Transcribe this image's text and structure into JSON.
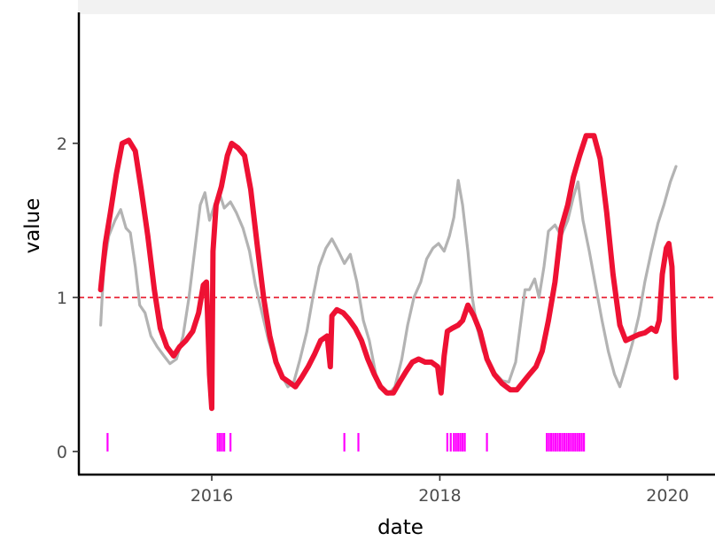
{
  "chart_data": {
    "type": "line",
    "title": "",
    "xlabel": "date",
    "ylabel": "value",
    "xlim": [
      "2014-11-01",
      "2020-06-01"
    ],
    "ylim": [
      -0.15,
      2.85
    ],
    "x_ticks": [
      {
        "date": "2016-01-01",
        "label": "2016"
      },
      {
        "date": "2018-01-01",
        "label": "2018"
      },
      {
        "date": "2020-01-01",
        "label": "2020"
      }
    ],
    "y_ticks": [
      {
        "value": 0,
        "label": "0"
      },
      {
        "value": 1,
        "label": "1"
      },
      {
        "value": 2,
        "label": "2"
      }
    ],
    "reference_line": {
      "value": 1,
      "style": "dashed",
      "color": "#e8192c"
    },
    "grid": false,
    "series": [
      {
        "color": "#ee1133",
        "style": "thick",
        "points": [
          [
            "2015-01-10",
            1.05
          ],
          [
            "2015-01-25",
            1.35
          ],
          [
            "2015-02-10",
            1.55
          ],
          [
            "2015-03-01",
            1.8
          ],
          [
            "2015-03-20",
            2.0
          ],
          [
            "2015-04-10",
            2.02
          ],
          [
            "2015-05-01",
            1.95
          ],
          [
            "2015-05-20",
            1.7
          ],
          [
            "2015-06-10",
            1.4
          ],
          [
            "2015-07-01",
            1.05
          ],
          [
            "2015-07-20",
            0.8
          ],
          [
            "2015-08-10",
            0.68
          ],
          [
            "2015-09-01",
            0.62
          ],
          [
            "2015-09-20",
            0.68
          ],
          [
            "2015-10-10",
            0.72
          ],
          [
            "2015-11-01",
            0.78
          ],
          [
            "2015-11-20",
            0.9
          ],
          [
            "2015-12-05",
            1.08
          ],
          [
            "2015-12-15",
            1.1
          ],
          [
            "2015-12-25",
            0.5
          ],
          [
            "2016-01-01",
            0.28
          ],
          [
            "2016-01-05",
            1.3
          ],
          [
            "2016-01-15",
            1.6
          ],
          [
            "2016-02-01",
            1.72
          ],
          [
            "2016-02-20",
            1.92
          ],
          [
            "2016-03-05",
            2.0
          ],
          [
            "2016-03-25",
            1.97
          ],
          [
            "2016-04-15",
            1.92
          ],
          [
            "2016-05-05",
            1.7
          ],
          [
            "2016-05-25",
            1.35
          ],
          [
            "2016-06-15",
            1.0
          ],
          [
            "2016-07-05",
            0.75
          ],
          [
            "2016-07-25",
            0.58
          ],
          [
            "2016-08-15",
            0.48
          ],
          [
            "2016-09-05",
            0.45
          ],
          [
            "2016-09-25",
            0.42
          ],
          [
            "2016-10-15",
            0.48
          ],
          [
            "2016-11-05",
            0.55
          ],
          [
            "2016-11-25",
            0.63
          ],
          [
            "2016-12-15",
            0.72
          ],
          [
            "2017-01-05",
            0.75
          ],
          [
            "2017-01-15",
            0.55
          ],
          [
            "2017-01-20",
            0.88
          ],
          [
            "2017-02-05",
            0.92
          ],
          [
            "2017-02-25",
            0.9
          ],
          [
            "2017-03-15",
            0.86
          ],
          [
            "2017-04-05",
            0.8
          ],
          [
            "2017-04-25",
            0.72
          ],
          [
            "2017-05-15",
            0.6
          ],
          [
            "2017-06-05",
            0.5
          ],
          [
            "2017-06-25",
            0.42
          ],
          [
            "2017-07-15",
            0.38
          ],
          [
            "2017-08-05",
            0.38
          ],
          [
            "2017-08-25",
            0.45
          ],
          [
            "2017-09-15",
            0.52
          ],
          [
            "2017-10-05",
            0.58
          ],
          [
            "2017-10-25",
            0.6
          ],
          [
            "2017-11-15",
            0.58
          ],
          [
            "2017-12-05",
            0.58
          ],
          [
            "2017-12-25",
            0.55
          ],
          [
            "2018-01-05",
            0.38
          ],
          [
            "2018-01-15",
            0.62
          ],
          [
            "2018-01-25",
            0.78
          ],
          [
            "2018-02-10",
            0.8
          ],
          [
            "2018-03-01",
            0.82
          ],
          [
            "2018-03-15",
            0.85
          ],
          [
            "2018-04-01",
            0.95
          ],
          [
            "2018-04-20",
            0.88
          ],
          [
            "2018-05-10",
            0.78
          ],
          [
            "2018-06-01",
            0.6
          ],
          [
            "2018-06-25",
            0.5
          ],
          [
            "2018-07-20",
            0.44
          ],
          [
            "2018-08-15",
            0.4
          ],
          [
            "2018-09-05",
            0.4
          ],
          [
            "2018-09-25",
            0.45
          ],
          [
            "2018-10-15",
            0.5
          ],
          [
            "2018-11-05",
            0.55
          ],
          [
            "2018-11-25",
            0.65
          ],
          [
            "2018-12-15",
            0.85
          ],
          [
            "2019-01-05",
            1.1
          ],
          [
            "2019-01-25",
            1.45
          ],
          [
            "2019-02-15",
            1.6
          ],
          [
            "2019-03-05",
            1.78
          ],
          [
            "2019-03-25",
            1.92
          ],
          [
            "2019-04-15",
            2.05
          ],
          [
            "2019-05-10",
            2.05
          ],
          [
            "2019-05-30",
            1.9
          ],
          [
            "2019-06-20",
            1.55
          ],
          [
            "2019-07-10",
            1.15
          ],
          [
            "2019-08-01",
            0.82
          ],
          [
            "2019-08-20",
            0.72
          ],
          [
            "2019-09-10",
            0.74
          ],
          [
            "2019-10-01",
            0.76
          ],
          [
            "2019-10-20",
            0.77
          ],
          [
            "2019-11-10",
            0.8
          ],
          [
            "2019-11-25",
            0.78
          ],
          [
            "2019-12-05",
            0.85
          ],
          [
            "2019-12-15",
            1.15
          ],
          [
            "2019-12-28",
            1.32
          ],
          [
            "2020-01-05",
            1.35
          ],
          [
            "2020-01-15",
            1.2
          ],
          [
            "2020-01-22",
            0.75
          ],
          [
            "2020-01-28",
            0.48
          ]
        ]
      },
      {
        "color": "#b3b3b3",
        "style": "thin",
        "points": [
          [
            "2015-01-10",
            0.82
          ],
          [
            "2015-01-20",
            1.2
          ],
          [
            "2015-02-05",
            1.4
          ],
          [
            "2015-02-25",
            1.5
          ],
          [
            "2015-03-15",
            1.57
          ],
          [
            "2015-04-01",
            1.45
          ],
          [
            "2015-04-15",
            1.42
          ],
          [
            "2015-05-01",
            1.2
          ],
          [
            "2015-05-15",
            0.95
          ],
          [
            "2015-06-01",
            0.9
          ],
          [
            "2015-06-20",
            0.75
          ],
          [
            "2015-07-10",
            0.68
          ],
          [
            "2015-08-01",
            0.62
          ],
          [
            "2015-08-20",
            0.57
          ],
          [
            "2015-09-10",
            0.6
          ],
          [
            "2015-10-01",
            0.75
          ],
          [
            "2015-10-20",
            1.0
          ],
          [
            "2015-11-10",
            1.35
          ],
          [
            "2015-11-25",
            1.6
          ],
          [
            "2015-12-10",
            1.68
          ],
          [
            "2015-12-25",
            1.5
          ],
          [
            "2016-01-10",
            1.6
          ],
          [
            "2016-01-25",
            1.68
          ],
          [
            "2016-02-10",
            1.58
          ],
          [
            "2016-03-01",
            1.62
          ],
          [
            "2016-03-20",
            1.55
          ],
          [
            "2016-04-10",
            1.45
          ],
          [
            "2016-05-01",
            1.3
          ],
          [
            "2016-05-20",
            1.08
          ],
          [
            "2016-06-10",
            0.9
          ],
          [
            "2016-07-01",
            0.72
          ],
          [
            "2016-07-20",
            0.6
          ],
          [
            "2016-08-10",
            0.5
          ],
          [
            "2016-09-01",
            0.42
          ],
          [
            "2016-09-20",
            0.45
          ],
          [
            "2016-10-10",
            0.6
          ],
          [
            "2016-11-01",
            0.78
          ],
          [
            "2016-11-20",
            1.0
          ],
          [
            "2016-12-10",
            1.2
          ],
          [
            "2017-01-01",
            1.32
          ],
          [
            "2017-01-20",
            1.38
          ],
          [
            "2017-02-10",
            1.3
          ],
          [
            "2017-03-01",
            1.22
          ],
          [
            "2017-03-20",
            1.28
          ],
          [
            "2017-04-10",
            1.1
          ],
          [
            "2017-05-01",
            0.85
          ],
          [
            "2017-05-20",
            0.72
          ],
          [
            "2017-06-10",
            0.5
          ],
          [
            "2017-07-01",
            0.4
          ],
          [
            "2017-07-20",
            0.37
          ],
          [
            "2017-08-10",
            0.42
          ],
          [
            "2017-09-01",
            0.6
          ],
          [
            "2017-09-20",
            0.82
          ],
          [
            "2017-10-10",
            1.0
          ],
          [
            "2017-11-01",
            1.1
          ],
          [
            "2017-11-20",
            1.25
          ],
          [
            "2017-12-10",
            1.32
          ],
          [
            "2017-12-28",
            1.35
          ],
          [
            "2018-01-15",
            1.3
          ],
          [
            "2018-02-01",
            1.4
          ],
          [
            "2018-02-15",
            1.52
          ],
          [
            "2018-03-01",
            1.76
          ],
          [
            "2018-03-15",
            1.6
          ],
          [
            "2018-04-01",
            1.3
          ],
          [
            "2018-04-15",
            1.0
          ],
          [
            "2018-05-01",
            0.8
          ],
          [
            "2018-05-20",
            0.65
          ],
          [
            "2018-06-10",
            0.55
          ],
          [
            "2018-07-01",
            0.5
          ],
          [
            "2018-07-20",
            0.46
          ],
          [
            "2018-08-10",
            0.45
          ],
          [
            "2018-09-01",
            0.58
          ],
          [
            "2018-09-15",
            0.8
          ],
          [
            "2018-10-01",
            1.05
          ],
          [
            "2018-10-15",
            1.05
          ],
          [
            "2018-11-01",
            1.12
          ],
          [
            "2018-11-15",
            1.0
          ],
          [
            "2018-12-01",
            1.2
          ],
          [
            "2018-12-15",
            1.43
          ],
          [
            "2019-01-05",
            1.47
          ],
          [
            "2019-01-25",
            1.4
          ],
          [
            "2019-02-15",
            1.5
          ],
          [
            "2019-03-05",
            1.65
          ],
          [
            "2019-03-20",
            1.75
          ],
          [
            "2019-04-05",
            1.5
          ],
          [
            "2019-04-25",
            1.3
          ],
          [
            "2019-05-15",
            1.08
          ],
          [
            "2019-06-05",
            0.85
          ],
          [
            "2019-06-25",
            0.65
          ],
          [
            "2019-07-15",
            0.5
          ],
          [
            "2019-08-01",
            0.42
          ],
          [
            "2019-08-20",
            0.55
          ],
          [
            "2019-09-10",
            0.7
          ],
          [
            "2019-10-01",
            0.88
          ],
          [
            "2019-10-20",
            1.1
          ],
          [
            "2019-11-10",
            1.3
          ],
          [
            "2019-12-01",
            1.48
          ],
          [
            "2019-12-20",
            1.6
          ],
          [
            "2020-01-10",
            1.75
          ],
          [
            "2020-01-28",
            1.85
          ]
        ]
      }
    ],
    "event_marks": {
      "color": "#ff00ff",
      "height": 0.12,
      "dates": [
        "2015-02-01",
        "2016-01-20",
        "2016-01-27",
        "2016-02-03",
        "2016-02-10",
        "2016-03-01",
        "2017-03-01",
        "2017-04-15",
        "2018-01-25",
        "2018-02-05",
        "2018-02-15",
        "2018-02-22",
        "2018-03-01",
        "2018-03-08",
        "2018-03-15",
        "2018-03-22",
        "2018-06-01",
        "2018-12-10",
        "2018-12-17",
        "2018-12-24",
        "2018-12-31",
        "2019-01-07",
        "2019-01-14",
        "2019-01-21",
        "2019-01-28",
        "2019-02-04",
        "2019-02-11",
        "2019-02-18",
        "2019-02-25",
        "2019-03-04",
        "2019-03-11",
        "2019-03-18",
        "2019-03-25",
        "2019-04-01",
        "2019-04-08"
      ]
    }
  }
}
